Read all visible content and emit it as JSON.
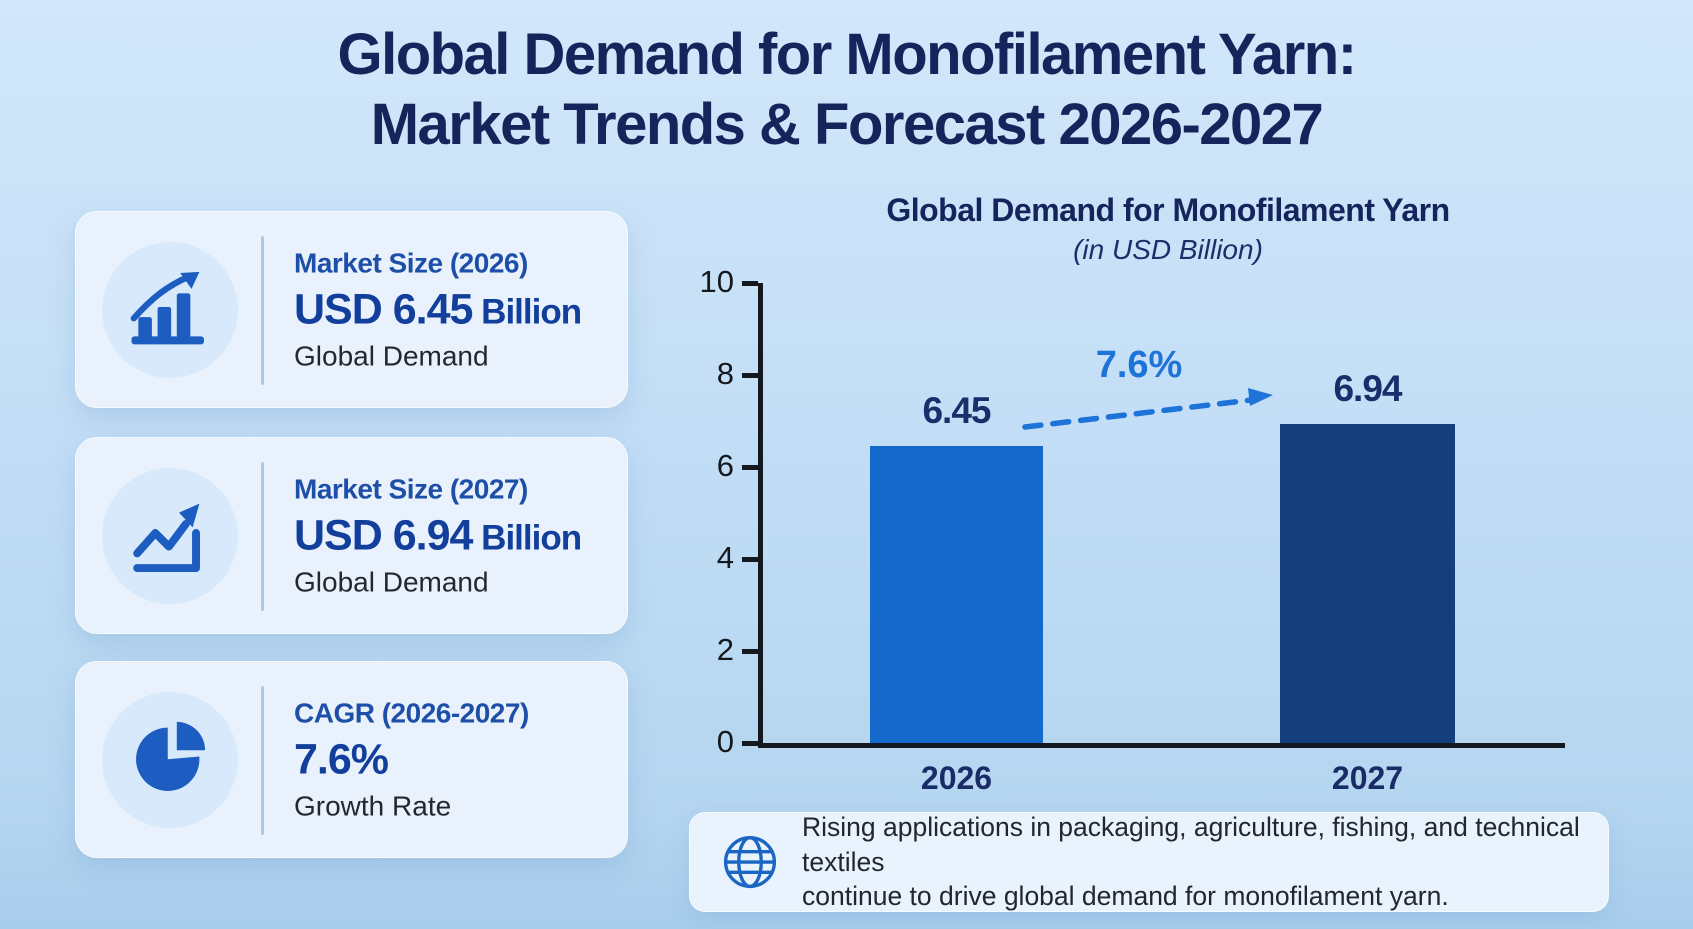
{
  "title": {
    "line1": "Global Demand for Monofilament Yarn:",
    "line2": "Market Trends & Forecast 2026-2027"
  },
  "stat_cards": [
    {
      "icon": "bar-chart-growth-icon",
      "label": "Market Size (2026)",
      "value": "USD 6.45",
      "value_unit": " Billion",
      "subtitle": "Global Demand"
    },
    {
      "icon": "line-chart-growth-icon",
      "label": "Market Size (2027)",
      "value": "USD 6.94",
      "value_unit": " Billion",
      "subtitle": "Global Demand"
    },
    {
      "icon": "pie-chart-icon",
      "label": "CAGR (2026-2027)",
      "value": "7.6%",
      "value_unit": "",
      "subtitle": "Growth Rate"
    }
  ],
  "chart_data": {
    "type": "bar",
    "title": "Global Demand for Monofilament Yarn",
    "subtitle": "(in USD Billion)",
    "categories": [
      "2026",
      "2027"
    ],
    "values": [
      6.45,
      6.94
    ],
    "data_labels": [
      "6.45",
      "6.94"
    ],
    "ylim": [
      0,
      10
    ],
    "yticks": [
      0,
      2,
      4,
      6,
      8,
      10
    ],
    "bar_colors": [
      "#1569cd",
      "#153e7d"
    ],
    "grid": false,
    "legend": false,
    "annotation": {
      "text": "7.6%",
      "style": "dashed-arrow-between-bar-tops",
      "color": "#1e73d8"
    },
    "xlabel": "",
    "ylabel": ""
  },
  "footnote": {
    "icon": "globe-icon",
    "line1": "Rising applications in packaging, agriculture, fishing, and technical textiles",
    "line2": "continue to drive global demand for monofilament yarn."
  },
  "colors": {
    "background_top": "#d2e7fa",
    "background_bottom": "#a8cdec",
    "title_navy": "#16245c",
    "card_background": "#e9f2fc",
    "icon_circle": "#d7e9fa",
    "icon_blue": "#1d5cc0",
    "card_label_blue": "#1d4fa8",
    "card_value_navy": "#123f9c",
    "body_text": "#23272c",
    "bar_2026": "#1569cd",
    "bar_2027": "#153e7d",
    "accent_blue": "#1e73d8",
    "axis_color": "#14181f"
  }
}
